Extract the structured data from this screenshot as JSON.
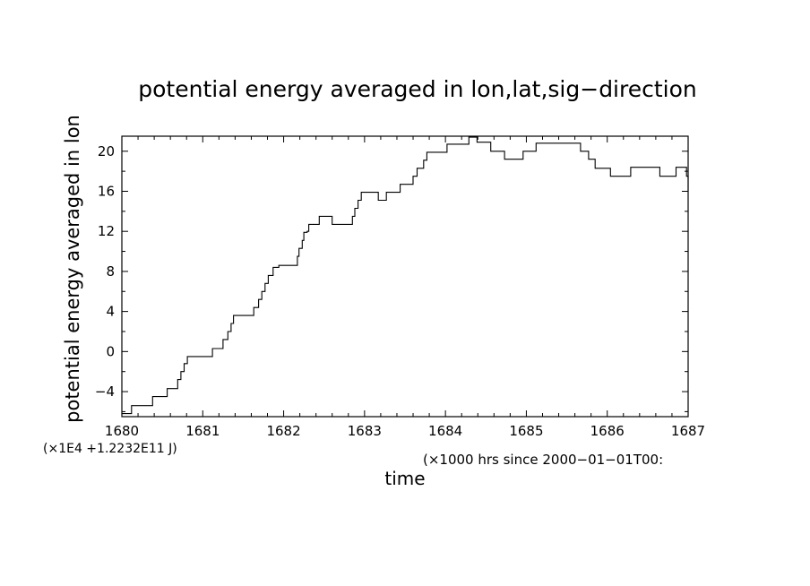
{
  "chart_data": {
    "type": "line",
    "title": "potential energy averaged in lon,lat,sig−direction",
    "ylabel": "potential energy averaged in lon",
    "xlabel": "time",
    "y_scale_note": "(×1E4 +1.2232E11 J)",
    "x_scale_note": "(×1000 hrs  since 2000−01−01T00:",
    "xlim": [
      1680,
      1687
    ],
    "ylim": [
      -6.5,
      21.5
    ],
    "x_ticks": [
      "1680",
      "1681",
      "1682",
      "1683",
      "1684",
      "1685",
      "1686",
      "1687"
    ],
    "y_ticks": [
      "20",
      "16",
      "12",
      "8",
      "4",
      "0",
      "−4"
    ],
    "series": [
      {
        "step": true,
        "x": [
          1680.0,
          1680.12,
          1680.17,
          1680.38,
          1680.56,
          1680.69,
          1680.73,
          1680.77,
          1680.81,
          1680.85,
          1681.12,
          1681.25,
          1681.31,
          1681.35,
          1681.38,
          1681.44,
          1681.63,
          1681.69,
          1681.73,
          1681.77,
          1681.81,
          1681.87,
          1681.94,
          1682.17,
          1682.19,
          1682.23,
          1682.25,
          1682.29,
          1682.31,
          1682.35,
          1682.44,
          1682.6,
          1682.69,
          1682.85,
          1682.88,
          1682.92,
          1682.96,
          1683.04,
          1683.17,
          1683.27,
          1683.44,
          1683.6,
          1683.65,
          1683.73,
          1683.77,
          1684.02,
          1684.29,
          1684.39,
          1684.56,
          1684.65,
          1684.73,
          1684.81,
          1684.96,
          1685.12,
          1685.48,
          1685.67,
          1685.77,
          1685.85,
          1686.04,
          1686.29,
          1686.65,
          1686.85,
          1686.98,
          1687.0
        ],
        "y": [
          -6.2,
          -5.4,
          -5.4,
          -4.5,
          -3.7,
          -2.8,
          -2.0,
          -1.2,
          -0.5,
          -0.5,
          0.3,
          1.2,
          2.0,
          2.8,
          3.6,
          3.6,
          4.4,
          5.2,
          6.0,
          6.8,
          7.6,
          8.4,
          8.6,
          9.5,
          10.3,
          11.1,
          11.9,
          12.0,
          12.7,
          12.7,
          13.5,
          12.7,
          12.7,
          13.5,
          14.3,
          15.1,
          15.9,
          15.9,
          15.1,
          15.9,
          16.7,
          17.5,
          18.3,
          19.1,
          19.9,
          20.7,
          21.4,
          20.9,
          20.0,
          20.0,
          19.2,
          19.2,
          20.0,
          20.8,
          20.8,
          20.0,
          19.2,
          18.3,
          17.5,
          18.4,
          17.5,
          18.4,
          17.5,
          16.1
        ]
      }
    ],
    "grid": false
  }
}
